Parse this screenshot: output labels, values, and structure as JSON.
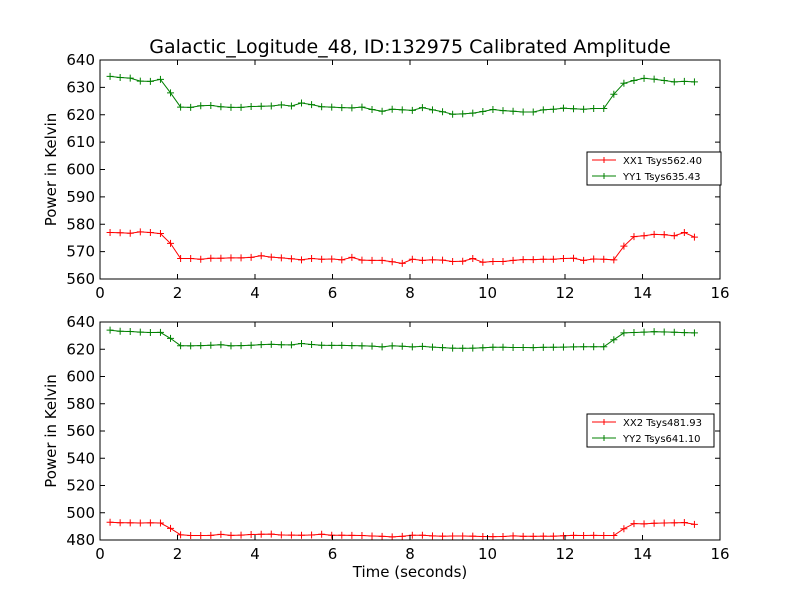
{
  "chart_data": [
    {
      "type": "line",
      "title": "Galactic_Logitude_48, ID:132975 Calibrated Amplitude",
      "xlabel": "",
      "ylabel": "Power in Kelvin",
      "xlim": [
        0,
        16
      ],
      "ylim": [
        560,
        640
      ],
      "xticks": [
        "0",
        "2",
        "4",
        "6",
        "8",
        "10",
        "12",
        "14",
        "16"
      ],
      "yticks": [
        "560",
        "570",
        "580",
        "590",
        "600",
        "610",
        "620",
        "630",
        "640"
      ],
      "grid": false,
      "legend_position": "center-right",
      "x": [
        0.26,
        0.52,
        0.78,
        1.04,
        1.3,
        1.56,
        1.82,
        2.08,
        2.34,
        2.6,
        2.86,
        3.12,
        3.38,
        3.64,
        3.9,
        4.16,
        4.42,
        4.68,
        4.94,
        5.2,
        5.46,
        5.72,
        5.98,
        6.24,
        6.5,
        6.76,
        7.02,
        7.28,
        7.54,
        7.8,
        8.06,
        8.32,
        8.58,
        8.84,
        9.1,
        9.36,
        9.62,
        9.88,
        10.14,
        10.4,
        10.66,
        10.92,
        11.18,
        11.44,
        11.7,
        11.96,
        12.22,
        12.48,
        12.74,
        13.0,
        13.26,
        13.52,
        13.78,
        14.04,
        14.3,
        14.56,
        14.82,
        15.08,
        15.34
      ],
      "series": [
        {
          "name": "XX1 Tsys562.40",
          "color": "#ff0000",
          "values": [
            577.0,
            576.9,
            576.7,
            577.2,
            577.0,
            576.6,
            573.0,
            567.5,
            567.5,
            567.2,
            567.6,
            567.6,
            567.7,
            567.7,
            567.9,
            568.5,
            568.0,
            567.7,
            567.4,
            567.0,
            567.5,
            567.2,
            567.3,
            567.0,
            567.9,
            566.9,
            566.8,
            566.8,
            566.3,
            565.7,
            567.2,
            566.8,
            567.0,
            566.9,
            566.4,
            566.5,
            567.5,
            566.1,
            566.4,
            566.4,
            566.8,
            567.1,
            567.1,
            567.2,
            567.2,
            567.5,
            567.6,
            566.8,
            567.3,
            567.2,
            567.0,
            572.0,
            575.5,
            575.8,
            576.3,
            576.2,
            575.8,
            577.0,
            575.3
          ]
        },
        {
          "name": "YY1 Tsys635.43",
          "color": "#008000",
          "values": [
            634.0,
            633.6,
            633.4,
            632.3,
            632.2,
            632.9,
            628.0,
            622.8,
            622.7,
            623.3,
            623.4,
            622.9,
            622.7,
            622.7,
            623.0,
            623.1,
            623.2,
            623.6,
            623.2,
            624.3,
            623.7,
            622.9,
            622.8,
            622.6,
            622.5,
            622.8,
            621.9,
            621.3,
            622.0,
            621.8,
            621.6,
            622.6,
            621.8,
            621.1,
            620.2,
            620.3,
            620.6,
            621.2,
            621.9,
            621.5,
            621.3,
            621.0,
            621.0,
            621.8,
            622.0,
            622.4,
            622.2,
            622.0,
            622.3,
            622.3,
            627.5,
            631.5,
            632.5,
            633.3,
            633.0,
            632.5,
            632.0,
            632.2,
            632.0
          ]
        }
      ]
    },
    {
      "type": "line",
      "title": "",
      "xlabel": "Time (seconds)",
      "ylabel": "Power in Kelvin",
      "xlim": [
        0,
        16
      ],
      "ylim": [
        480,
        640
      ],
      "xticks": [
        "0",
        "2",
        "4",
        "6",
        "8",
        "10",
        "12",
        "14",
        "16"
      ],
      "yticks": [
        "480",
        "500",
        "520",
        "540",
        "560",
        "580",
        "600",
        "620",
        "640"
      ],
      "grid": false,
      "legend_position": "center-right",
      "x": [
        0.26,
        0.52,
        0.78,
        1.04,
        1.3,
        1.56,
        1.82,
        2.08,
        2.34,
        2.6,
        2.86,
        3.12,
        3.38,
        3.64,
        3.9,
        4.16,
        4.42,
        4.68,
        4.94,
        5.2,
        5.46,
        5.72,
        5.98,
        6.24,
        6.5,
        6.76,
        7.02,
        7.28,
        7.54,
        7.8,
        8.06,
        8.32,
        8.58,
        8.84,
        9.1,
        9.36,
        9.62,
        9.88,
        10.14,
        10.4,
        10.66,
        10.92,
        11.18,
        11.44,
        11.7,
        11.96,
        12.22,
        12.48,
        12.74,
        13.0,
        13.26,
        13.52,
        13.78,
        14.04,
        14.3,
        14.56,
        14.82,
        15.08,
        15.34
      ],
      "series": [
        {
          "name": "XX2 Tsys481.93",
          "color": "#ff0000",
          "values": [
            493.0,
            492.7,
            492.6,
            492.5,
            492.6,
            492.5,
            488.5,
            483.8,
            483.3,
            483.3,
            483.4,
            484.1,
            483.4,
            483.6,
            484.0,
            484.2,
            484.3,
            483.7,
            483.6,
            483.5,
            483.7,
            484.2,
            483.5,
            483.5,
            483.4,
            483.3,
            482.9,
            482.7,
            482.3,
            482.7,
            483.5,
            483.5,
            483.0,
            482.8,
            482.9,
            482.9,
            482.8,
            482.6,
            482.5,
            482.6,
            483.0,
            482.7,
            482.7,
            482.8,
            482.8,
            483.1,
            483.4,
            483.3,
            483.4,
            483.3,
            483.3,
            488.3,
            492.0,
            491.8,
            492.3,
            492.5,
            492.6,
            492.8,
            491.5
          ]
        },
        {
          "name": "YY2 Tsys641.10",
          "color": "#008000",
          "values": [
            634.0,
            633.2,
            633.0,
            632.6,
            632.3,
            632.4,
            628.0,
            622.6,
            622.5,
            622.7,
            622.9,
            623.3,
            622.5,
            622.7,
            622.9,
            623.4,
            623.6,
            623.3,
            623.2,
            624.2,
            623.5,
            622.9,
            622.8,
            622.8,
            622.7,
            622.5,
            622.3,
            621.7,
            622.5,
            622.2,
            621.7,
            622.1,
            621.6,
            621.2,
            620.8,
            620.7,
            620.8,
            621.1,
            621.5,
            621.5,
            621.3,
            621.3,
            621.2,
            621.4,
            621.5,
            621.6,
            621.7,
            621.8,
            621.8,
            621.8,
            627.0,
            632.0,
            632.3,
            632.6,
            632.9,
            632.7,
            632.5,
            632.2,
            632.0
          ]
        }
      ]
    }
  ]
}
